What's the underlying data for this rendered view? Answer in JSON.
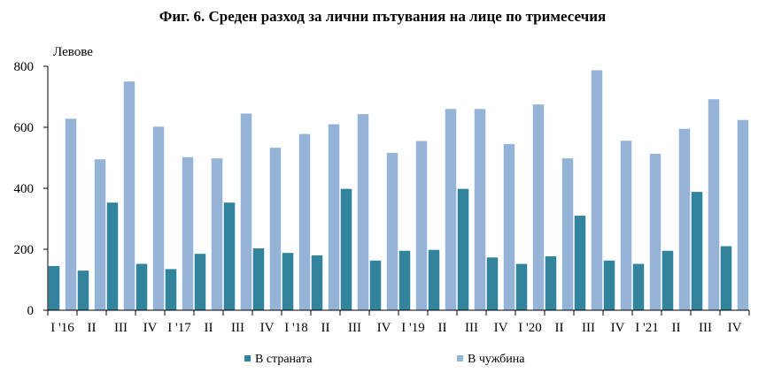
{
  "chart_data": {
    "type": "bar",
    "title": "Фиг. 6. Среден разход за лични пътувания на лице по тримесечия",
    "ylabel": "Левове",
    "xlabel": "",
    "ylim": [
      0,
      800
    ],
    "yticks": [
      0,
      200,
      400,
      600,
      800
    ],
    "grid": false,
    "legend_position": "bottom",
    "categories": [
      "I '16",
      "II",
      "III",
      "IV",
      "I '17",
      "II",
      "III",
      "IV",
      "I '18",
      "II",
      "III",
      "IV",
      "I '19",
      "II",
      "III",
      "IV",
      "I '20",
      "II",
      "III",
      "IV",
      "I '21",
      "II",
      "III",
      "IV"
    ],
    "series": [
      {
        "name": "В страната",
        "color": "#31849b",
        "values": [
          145,
          130,
          353,
          152,
          135,
          185,
          353,
          203,
          188,
          180,
          398,
          163,
          195,
          198,
          398,
          173,
          152,
          177,
          310,
          163,
          152,
          195,
          388,
          210
        ]
      },
      {
        "name": "В чужбина",
        "color": "#95b3d7",
        "values": [
          628,
          495,
          750,
          602,
          502,
          498,
          645,
          533,
          578,
          610,
          643,
          516,
          555,
          660,
          660,
          545,
          675,
          498,
          787,
          556,
          513,
          595,
          692,
          624
        ]
      }
    ]
  }
}
